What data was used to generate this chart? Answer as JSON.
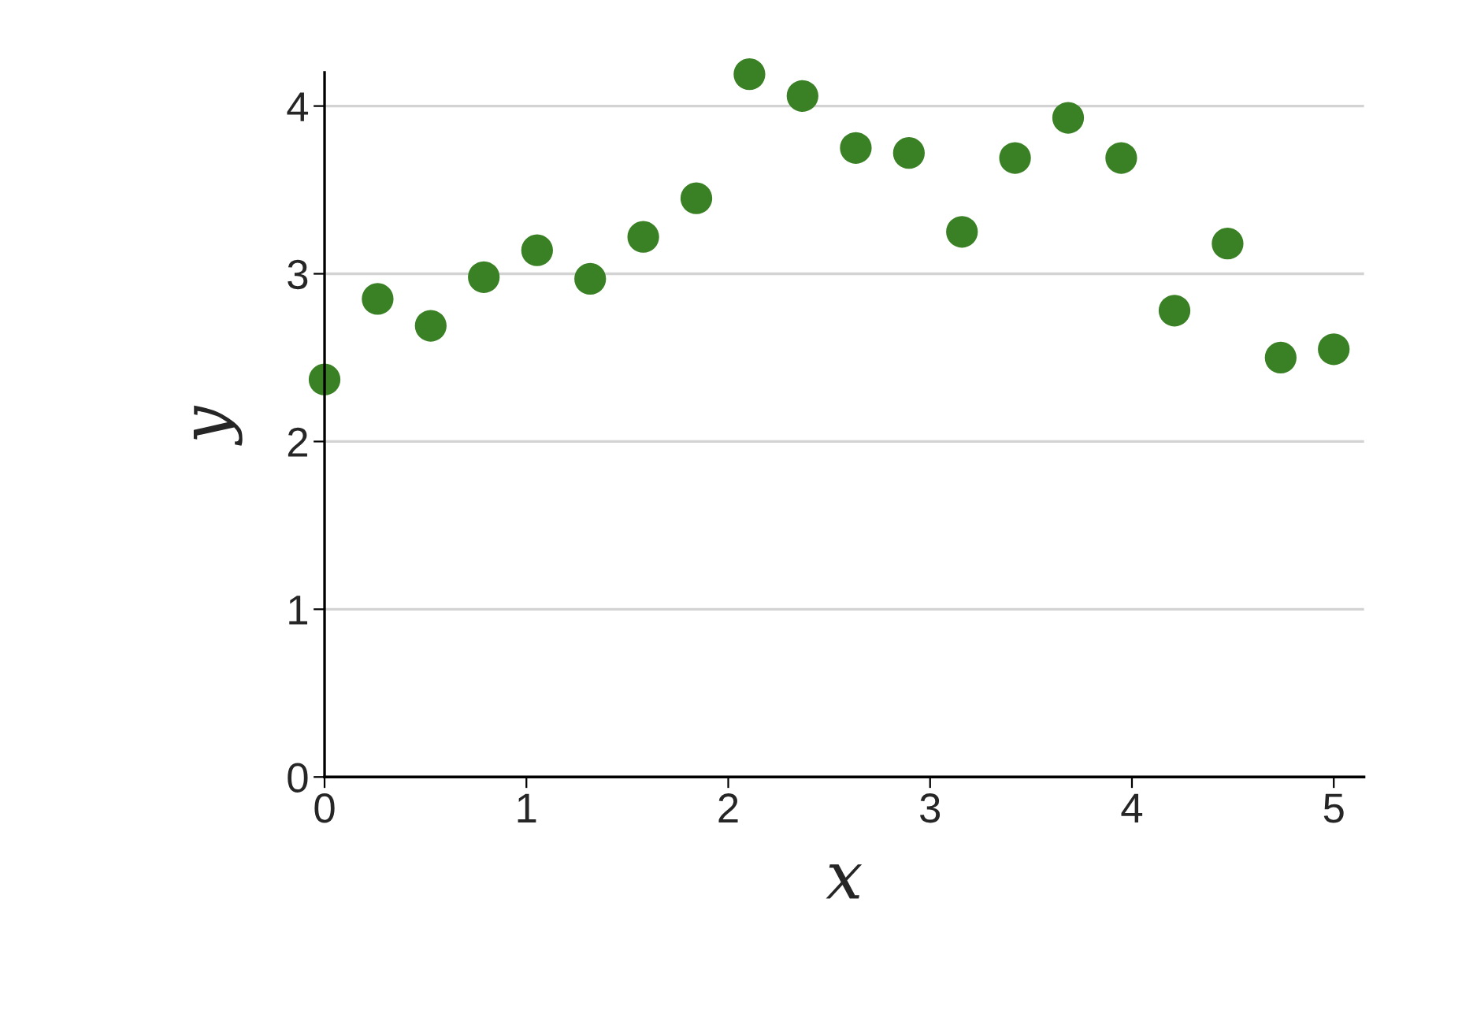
{
  "chart_data": {
    "type": "scatter",
    "xlabel": "x",
    "ylabel": "y",
    "x": [
      0,
      0.263,
      0.526,
      0.789,
      1.053,
      1.316,
      1.579,
      1.842,
      2.105,
      2.368,
      2.632,
      2.895,
      3.158,
      3.421,
      3.684,
      3.947,
      4.211,
      4.474,
      4.737,
      5
    ],
    "series": [
      {
        "color": "#3a8024",
        "values": [
          2.37,
          2.85,
          2.69,
          2.98,
          3.14,
          2.97,
          3.22,
          3.45,
          4.19,
          4.06,
          3.75,
          3.72,
          3.25,
          3.69,
          3.93,
          3.69,
          2.78,
          3.18,
          2.5,
          2.55
        ]
      }
    ],
    "xlim": [
      0,
      5.15
    ],
    "ylim": [
      0,
      4.2
    ],
    "xticks": [
      0,
      1,
      2,
      3,
      4,
      5
    ],
    "yticks": [
      0,
      1,
      2,
      3,
      4
    ],
    "grid": "y",
    "marker": "circle",
    "legend": false
  }
}
